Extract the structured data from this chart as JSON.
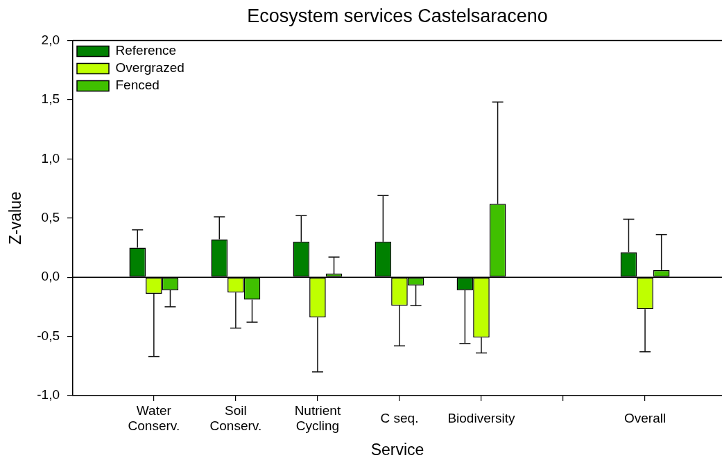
{
  "chart_data": {
    "type": "bar",
    "title": "Ecosystem services Castelsaraceno",
    "xlabel": "Service",
    "ylabel": "Z-value",
    "categories": [
      "Water\nConserv.",
      "Soil\nConserv.",
      "Nutrient\nCycling",
      "C seq.",
      "Biodiversity",
      null,
      "Overall"
    ],
    "series": [
      {
        "name": "Reference",
        "color": "#008000",
        "values": [
          0.25,
          0.32,
          0.3,
          0.3,
          -0.11,
          null,
          0.21
        ],
        "errors": [
          [
            0.25,
            0.4
          ],
          [
            0.32,
            0.51
          ],
          [
            0.3,
            0.52
          ],
          [
            0.3,
            0.69
          ],
          [
            -0.56,
            -0.11
          ],
          null,
          [
            0.21,
            0.49
          ]
        ]
      },
      {
        "name": "Overgrazed",
        "color": "#bfff00",
        "values": [
          -0.14,
          -0.13,
          -0.34,
          -0.24,
          -0.51,
          null,
          -0.27
        ],
        "errors": [
          [
            -0.67,
            -0.14
          ],
          [
            -0.43,
            -0.13
          ],
          [
            -0.8,
            -0.34
          ],
          [
            -0.58,
            -0.24
          ],
          [
            -0.64,
            -0.51
          ],
          null,
          [
            -0.63,
            -0.27
          ]
        ]
      },
      {
        "name": "Fenced",
        "color": "#40c000",
        "values": [
          -0.11,
          -0.19,
          0.03,
          -0.07,
          0.62,
          null,
          0.06
        ],
        "errors": [
          [
            -0.25,
            -0.11
          ],
          [
            -0.38,
            -0.19
          ],
          [
            0.03,
            0.17
          ],
          [
            -0.24,
            -0.07
          ],
          [
            0.62,
            1.48
          ],
          null,
          [
            0.06,
            0.36
          ]
        ]
      }
    ],
    "ylim": [
      -1,
      2
    ],
    "yticks": [
      {
        "value": -1,
        "label": "-1,0"
      },
      {
        "value": -0.5,
        "label": "-0,5"
      },
      {
        "value": 0,
        "label": "0,0"
      },
      {
        "value": 0.5,
        "label": "0,5"
      },
      {
        "value": 1,
        "label": "1,0"
      },
      {
        "value": 1.5,
        "label": "1,5"
      },
      {
        "value": 2,
        "label": "2,0"
      }
    ],
    "ref_lines": [
      {
        "axis": "y",
        "value": 0
      }
    ],
    "legend": "top left"
  }
}
